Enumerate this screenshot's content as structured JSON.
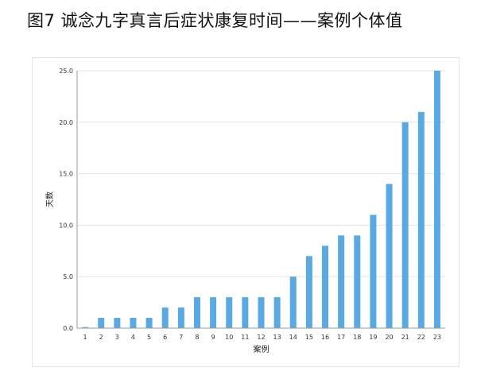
{
  "figure_title": "图7    诚念九字真言后症状康复时间——案例个体值",
  "chart_data": {
    "type": "bar",
    "title": "",
    "xlabel": "案例",
    "ylabel": "天数",
    "categories": [
      "1",
      "2",
      "3",
      "4",
      "5",
      "6",
      "7",
      "8",
      "9",
      "10",
      "11",
      "12",
      "13",
      "14",
      "15",
      "16",
      "17",
      "18",
      "19",
      "20",
      "21",
      "22",
      "23"
    ],
    "values": [
      0.1,
      1,
      1,
      1,
      1,
      2,
      2,
      3,
      3,
      3,
      3,
      3,
      3,
      5,
      7,
      8,
      9,
      9,
      11,
      14,
      20,
      21,
      25
    ],
    "ylim": [
      0,
      25
    ],
    "yticks": [
      "0.0",
      "5.0",
      "10.0",
      "15.0",
      "20.0",
      "25.0"
    ],
    "grid": true,
    "bar_color": "#5aa9e3",
    "grid_color": "#e6e6e6",
    "axis_color": "#999999"
  }
}
